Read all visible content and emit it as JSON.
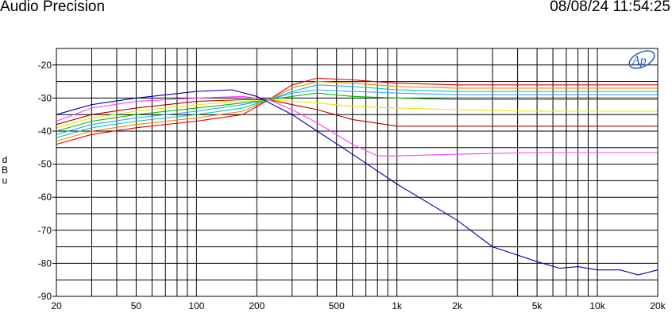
{
  "header": {
    "app_title": "Audio Precision",
    "timestamp": "08/08/24 11:54:25"
  },
  "logo": {
    "text": "Ap"
  },
  "chart_data": {
    "type": "line",
    "xscale": "log",
    "xlim": [
      20,
      20000
    ],
    "ylim": [
      -90,
      -15
    ],
    "grid": true,
    "xlabel": "",
    "ylabel": "dBu",
    "xticks": [
      {
        "v": 20,
        "label": "20"
      },
      {
        "v": 50,
        "label": "50"
      },
      {
        "v": 100,
        "label": "100"
      },
      {
        "v": 200,
        "label": "200"
      },
      {
        "v": 500,
        "label": "500"
      },
      {
        "v": 1000,
        "label": "1k"
      },
      {
        "v": 2000,
        "label": "2k"
      },
      {
        "v": 5000,
        "label": "5k"
      },
      {
        "v": 10000,
        "label": "10k"
      },
      {
        "v": 20000,
        "label": "20k"
      }
    ],
    "yticks": [
      {
        "v": -20,
        "label": "-20"
      },
      {
        "v": -30,
        "label": "-30"
      },
      {
        "v": -40,
        "label": "-40"
      },
      {
        "v": -50,
        "label": "-50"
      },
      {
        "v": -60,
        "label": "-60"
      },
      {
        "v": -70,
        "label": "-70"
      },
      {
        "v": -80,
        "label": "-80"
      },
      {
        "v": -90,
        "label": "-90"
      }
    ],
    "series": [
      {
        "color": "#e00000",
        "points": [
          [
            20,
            -44
          ],
          [
            30,
            -41
          ],
          [
            50,
            -39
          ],
          [
            100,
            -37
          ],
          [
            170,
            -35
          ],
          [
            230,
            -30.5
          ],
          [
            300,
            -26
          ],
          [
            400,
            -24
          ],
          [
            600,
            -24.5
          ],
          [
            1000,
            -25.5
          ],
          [
            2000,
            -26
          ],
          [
            5000,
            -26
          ],
          [
            20000,
            -26
          ]
        ]
      },
      {
        "color": "#ff8000",
        "points": [
          [
            20,
            -43
          ],
          [
            30,
            -40
          ],
          [
            50,
            -38
          ],
          [
            100,
            -36
          ],
          [
            170,
            -34
          ],
          [
            230,
            -30.5
          ],
          [
            300,
            -27
          ],
          [
            400,
            -25
          ],
          [
            600,
            -25.5
          ],
          [
            1000,
            -26.5
          ],
          [
            2000,
            -27
          ],
          [
            5000,
            -27
          ],
          [
            20000,
            -27
          ]
        ]
      },
      {
        "color": "#00c8c8",
        "points": [
          [
            20,
            -42
          ],
          [
            30,
            -39
          ],
          [
            50,
            -37
          ],
          [
            100,
            -35
          ],
          [
            170,
            -33
          ],
          [
            230,
            -30.5
          ],
          [
            300,
            -28
          ],
          [
            400,
            -26
          ],
          [
            600,
            -26.5
          ],
          [
            1000,
            -27.5
          ],
          [
            2000,
            -28
          ],
          [
            5000,
            -28
          ],
          [
            20000,
            -28
          ]
        ]
      },
      {
        "color": "#3ca0ff",
        "points": [
          [
            20,
            -41
          ],
          [
            30,
            -38
          ],
          [
            50,
            -36
          ],
          [
            100,
            -34
          ],
          [
            170,
            -32
          ],
          [
            230,
            -30.5
          ],
          [
            300,
            -28.5
          ],
          [
            400,
            -27.5
          ],
          [
            600,
            -28
          ],
          [
            1000,
            -28.5
          ],
          [
            2000,
            -29
          ],
          [
            5000,
            -29
          ],
          [
            20000,
            -29
          ]
        ]
      },
      {
        "color": "#00c000",
        "points": [
          [
            20,
            -40
          ],
          [
            30,
            -37
          ],
          [
            50,
            -35
          ],
          [
            100,
            -33
          ],
          [
            170,
            -31.5
          ],
          [
            230,
            -30.5
          ],
          [
            300,
            -29.5
          ],
          [
            400,
            -28.5
          ],
          [
            600,
            -29.5
          ],
          [
            1000,
            -30
          ],
          [
            2000,
            -30.5
          ],
          [
            5000,
            -30.5
          ],
          [
            20000,
            -30.5
          ]
        ]
      },
      {
        "color": "#e8e800",
        "points": [
          [
            20,
            -39
          ],
          [
            30,
            -36
          ],
          [
            50,
            -34
          ],
          [
            100,
            -32
          ],
          [
            170,
            -31
          ],
          [
            230,
            -30.5
          ],
          [
            300,
            -31
          ],
          [
            400,
            -31.5
          ],
          [
            600,
            -32.5
          ],
          [
            1000,
            -33
          ],
          [
            2000,
            -33.5
          ],
          [
            5000,
            -34
          ],
          [
            20000,
            -34
          ]
        ]
      },
      {
        "color": "#b00000",
        "points": [
          [
            20,
            -38
          ],
          [
            30,
            -35
          ],
          [
            50,
            -33
          ],
          [
            100,
            -31
          ],
          [
            170,
            -30.5
          ],
          [
            230,
            -30.5
          ],
          [
            300,
            -32
          ],
          [
            400,
            -33.5
          ],
          [
            600,
            -36.5
          ],
          [
            1000,
            -38.5
          ],
          [
            2000,
            -38.5
          ],
          [
            5000,
            -38.5
          ],
          [
            20000,
            -38.5
          ]
        ]
      },
      {
        "color": "#ff40ff",
        "points": [
          [
            20,
            -37
          ],
          [
            30,
            -33
          ],
          [
            50,
            -31
          ],
          [
            100,
            -30
          ],
          [
            170,
            -29.5
          ],
          [
            230,
            -30.5
          ],
          [
            300,
            -33.5
          ],
          [
            400,
            -37.5
          ],
          [
            600,
            -44
          ],
          [
            800,
            -47.5
          ],
          [
            1000,
            -47.5
          ],
          [
            2000,
            -47
          ],
          [
            5000,
            -46.5
          ],
          [
            20000,
            -46.5
          ]
        ]
      },
      {
        "color": "#0000a8",
        "points": [
          [
            20,
            -35
          ],
          [
            30,
            -32
          ],
          [
            50,
            -30
          ],
          [
            100,
            -28
          ],
          [
            150,
            -27.5
          ],
          [
            200,
            -29.5
          ],
          [
            300,
            -35
          ],
          [
            400,
            -40
          ],
          [
            600,
            -47
          ],
          [
            1000,
            -56
          ],
          [
            2000,
            -67
          ],
          [
            3000,
            -75
          ],
          [
            5000,
            -79.5
          ],
          [
            6500,
            -81.5
          ],
          [
            8000,
            -81
          ],
          [
            10000,
            -82
          ],
          [
            13000,
            -82
          ],
          [
            16000,
            -83.5
          ],
          [
            20000,
            -82
          ]
        ]
      }
    ]
  }
}
